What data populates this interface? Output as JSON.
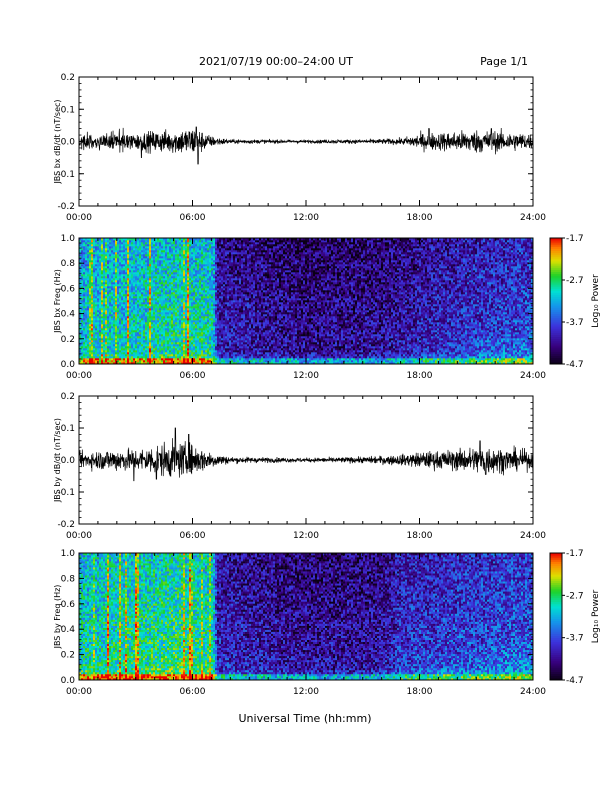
{
  "header": {
    "title": "2021/07/19  00:00–24:00 UT",
    "page": "Page 1/1"
  },
  "colors": {
    "background": "#ffffff",
    "axis": "#000000",
    "trace": "#000000"
  },
  "chart_data": [
    {
      "type": "line",
      "ylabel": "JBS bx dB/dt (nT/sec)",
      "xlabel": "",
      "x_tick_labels": [
        "00:00",
        "06:00",
        "12:00",
        "18:00",
        "24:00"
      ],
      "y_tick_labels": [
        "-0.2",
        "-0.1",
        "0.0",
        "0.1",
        "0.2"
      ],
      "xlim": [
        0,
        24
      ],
      "ylim": [
        -0.2,
        0.2
      ],
      "x_units": "hours UT",
      "envelope": [
        {
          "hour": 0,
          "amp": 0.012
        },
        {
          "hour": 1,
          "amp": 0.015
        },
        {
          "hour": 2,
          "amp": 0.018
        },
        {
          "hour": 3,
          "amp": 0.016
        },
        {
          "hour": 4,
          "amp": 0.02
        },
        {
          "hour": 5,
          "amp": 0.022
        },
        {
          "hour": 6,
          "amp": 0.028
        },
        {
          "hour": 6.5,
          "amp": 0.02
        },
        {
          "hour": 7,
          "amp": 0.01
        },
        {
          "hour": 8,
          "amp": 0.004
        },
        {
          "hour": 12,
          "amp": 0.003
        },
        {
          "hour": 15,
          "amp": 0.004
        },
        {
          "hour": 17,
          "amp": 0.006
        },
        {
          "hour": 18,
          "amp": 0.015
        },
        {
          "hour": 19,
          "amp": 0.017
        },
        {
          "hour": 21,
          "amp": 0.022
        },
        {
          "hour": 22,
          "amp": 0.02
        },
        {
          "hour": 24,
          "amp": 0.015
        }
      ],
      "peaks": [
        {
          "hour": 6.2,
          "value": 0.045
        },
        {
          "hour": 6.3,
          "value": -0.07
        },
        {
          "hour": 3.3,
          "value": -0.05
        },
        {
          "hour": 18.5,
          "value": 0.04
        },
        {
          "hour": 21.8,
          "value": 0.04
        }
      ]
    },
    {
      "type": "heatmap",
      "ylabel": "JBS bx Freq (Hz)",
      "xlabel": "",
      "x_tick_labels": [
        "00:00",
        "06:00",
        "12:00",
        "18:00",
        "24:00"
      ],
      "y_tick_labels": [
        "0.0",
        "0.2",
        "0.4",
        "0.6",
        "0.8",
        "1.0"
      ],
      "xlim": [
        0,
        24
      ],
      "ylim": [
        0,
        1
      ],
      "colorbar": {
        "label": "Log₁₀ Power",
        "min": -4.7,
        "max": -1.7,
        "tick_labels": [
          "-1.7",
          "-2.7",
          "-3.7",
          "-4.7"
        ]
      },
      "activity_profile": [
        {
          "hour": 0,
          "level": 0.55
        },
        {
          "hour": 3,
          "level": 0.58
        },
        {
          "hour": 5,
          "level": 0.62
        },
        {
          "hour": 7.1,
          "level": 0.6
        },
        {
          "hour": 7.3,
          "level": 0.25
        },
        {
          "hour": 12,
          "level": 0.18
        },
        {
          "hour": 16,
          "level": 0.2
        },
        {
          "hour": 19,
          "level": 0.27
        },
        {
          "hour": 22,
          "level": 0.32
        },
        {
          "hour": 24,
          "level": 0.35
        }
      ]
    },
    {
      "type": "line",
      "ylabel": "JBS by dB/dt (nT/sec)",
      "xlabel": "",
      "x_tick_labels": [
        "00:00",
        "06:00",
        "12:00",
        "18:00",
        "24:00"
      ],
      "y_tick_labels": [
        "-0.2",
        "-0.1",
        "0.0",
        "0.1",
        "0.2"
      ],
      "xlim": [
        0,
        24
      ],
      "ylim": [
        -0.2,
        0.2
      ],
      "x_units": "hours UT",
      "envelope": [
        {
          "hour": 0,
          "amp": 0.015
        },
        {
          "hour": 1,
          "amp": 0.018
        },
        {
          "hour": 2,
          "amp": 0.022
        },
        {
          "hour": 3,
          "amp": 0.02
        },
        {
          "hour": 4,
          "amp": 0.028
        },
        {
          "hour": 5,
          "amp": 0.035
        },
        {
          "hour": 6,
          "amp": 0.03
        },
        {
          "hour": 7,
          "amp": 0.015
        },
        {
          "hour": 8,
          "amp": 0.006
        },
        {
          "hour": 12,
          "amp": 0.004
        },
        {
          "hour": 15,
          "amp": 0.006
        },
        {
          "hour": 17,
          "amp": 0.01
        },
        {
          "hour": 18,
          "amp": 0.015
        },
        {
          "hour": 20,
          "amp": 0.02
        },
        {
          "hour": 21.5,
          "amp": 0.028
        },
        {
          "hour": 22.5,
          "amp": 0.022
        },
        {
          "hour": 24,
          "amp": 0.018
        }
      ],
      "peaks": [
        {
          "hour": 5.1,
          "value": 0.1
        },
        {
          "hour": 5.8,
          "value": 0.08
        },
        {
          "hour": 2.9,
          "value": -0.065
        },
        {
          "hour": 4.1,
          "value": -0.06
        },
        {
          "hour": 21.2,
          "value": 0.06
        },
        {
          "hour": 21.5,
          "value": -0.045
        }
      ]
    },
    {
      "type": "heatmap",
      "ylabel": "JBS by Freq (Hz)",
      "xlabel": "Universal Time (hh:mm)",
      "x_tick_labels": [
        "00:00",
        "06:00",
        "12:00",
        "18:00",
        "24:00"
      ],
      "y_tick_labels": [
        "0.0",
        "0.2",
        "0.4",
        "0.6",
        "0.8",
        "1.0"
      ],
      "xlim": [
        0,
        24
      ],
      "ylim": [
        0,
        1
      ],
      "colorbar": {
        "label": "Log₁₀ Power",
        "min": -4.7,
        "max": -1.7,
        "tick_labels": [
          "-1.7",
          "-2.7",
          "-3.7",
          "-4.7"
        ]
      },
      "activity_profile": [
        {
          "hour": 0,
          "level": 0.6
        },
        {
          "hour": 3,
          "level": 0.63
        },
        {
          "hour": 5,
          "level": 0.66
        },
        {
          "hour": 7.1,
          "level": 0.62
        },
        {
          "hour": 7.3,
          "level": 0.27
        },
        {
          "hour": 12,
          "level": 0.2
        },
        {
          "hour": 16,
          "level": 0.22
        },
        {
          "hour": 17,
          "level": 0.3
        },
        {
          "hour": 20,
          "level": 0.33
        },
        {
          "hour": 24,
          "level": 0.38
        }
      ]
    }
  ]
}
